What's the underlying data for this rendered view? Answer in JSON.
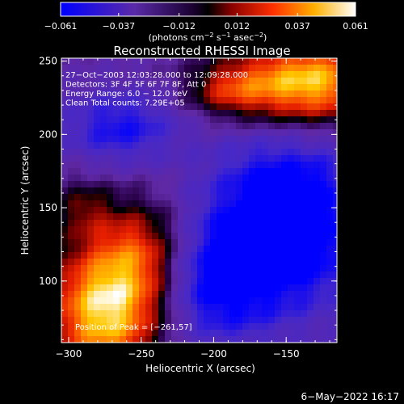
{
  "colorbar": {
    "ticks": [
      "−0.061",
      "−0.037",
      "−0.012",
      "0.012",
      "0.037",
      "0.061"
    ],
    "tick_values": [
      -0.061,
      -0.037,
      -0.012,
      0.012,
      0.037,
      0.061
    ],
    "units_pre": "(photons cm",
    "units_sup1": "−2",
    "units_mid": " s",
    "units_sup2": "−1",
    "units_post": " asec",
    "units_sup3": "−2",
    "units_end": ")",
    "range": [
      -0.061,
      0.061
    ],
    "colors": [
      "#0000ff",
      "#6a33b8",
      "#000000",
      "#c00000",
      "#ff6000",
      "#ffd000",
      "#ffffff"
    ]
  },
  "chart_data": {
    "type": "heatmap",
    "title": "Reconstructed RHESSI Image",
    "xlabel": "Heliocentric X (arcsec)",
    "ylabel": "Heliocentric Y (arcsec)",
    "xlim": [
      -305,
      -115
    ],
    "ylim": [
      58,
      252
    ],
    "xticks": [
      -300,
      -250,
      -200,
      -150
    ],
    "xtick_labels": [
      "−300",
      "−250",
      "−200",
      "−150"
    ],
    "yticks": [
      100,
      150,
      200,
      250
    ],
    "ytick_labels": [
      "100",
      "150",
      "200",
      "250"
    ],
    "annotations": [
      "27−Oct−2003 12:03:28.000 to 12:09:28.000",
      "Detectors: 3F 4F 5F 6F 7F 8F, Att 0",
      "Energy Range: 6.0 − 12.0 keV",
      "Clean     Total counts: 7.29E+05"
    ],
    "peak_label": "Position of Peak = [−261,57]",
    "peak": [
      -261,
      57
    ]
  },
  "footer": {
    "date": "6−May−2022 16:17"
  }
}
